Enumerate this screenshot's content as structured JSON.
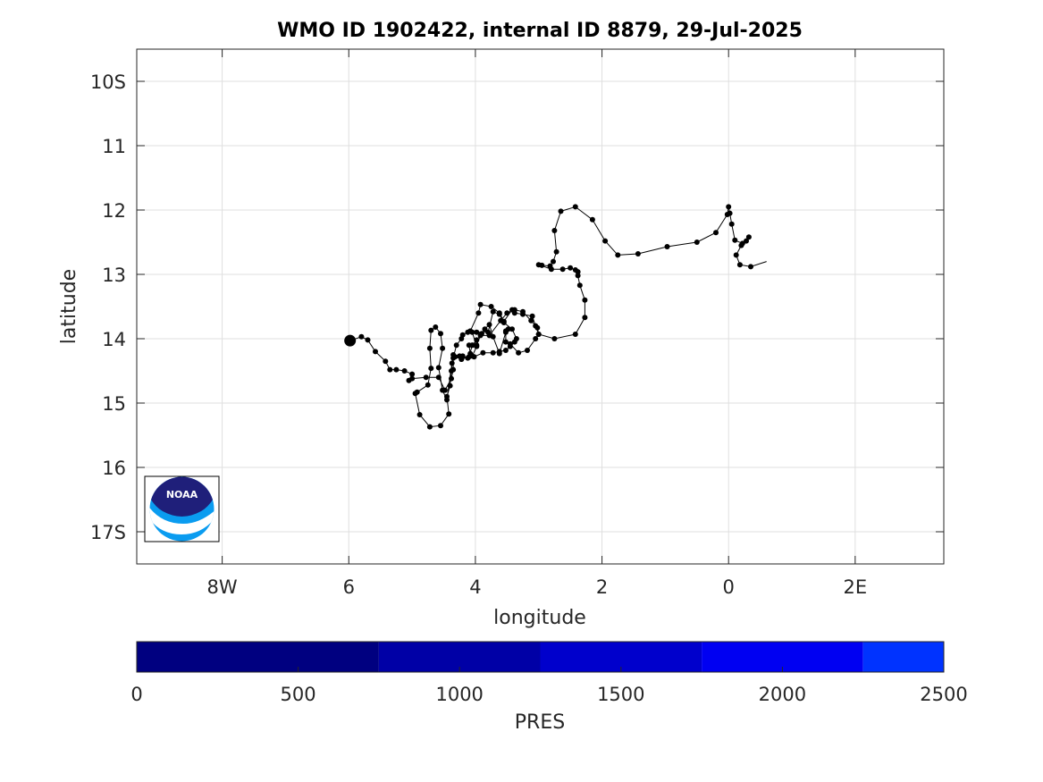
{
  "chart_data": {
    "type": "line",
    "title": "WMO ID 1902422, internal ID 8879, 29-Jul-2025",
    "xlabel": "longitude",
    "ylabel": "latitude",
    "xlim": [
      -9.35,
      3.4
    ],
    "ylim": [
      17.5,
      9.5
    ],
    "x_ticks": [
      {
        "value": -8,
        "label": "8W"
      },
      {
        "value": -6,
        "label": "6"
      },
      {
        "value": -4,
        "label": "4"
      },
      {
        "value": -2,
        "label": "2"
      },
      {
        "value": 0,
        "label": "0"
      },
      {
        "value": 2,
        "label": "2E"
      }
    ],
    "y_ticks": [
      {
        "value": 10,
        "label": "10S"
      },
      {
        "value": 11,
        "label": "11"
      },
      {
        "value": 12,
        "label": "12"
      },
      {
        "value": 13,
        "label": "13"
      },
      {
        "value": 14,
        "label": "14"
      },
      {
        "value": 15,
        "label": "15"
      },
      {
        "value": 16,
        "label": "16"
      },
      {
        "value": 17,
        "label": "17S"
      }
    ],
    "grid": true,
    "series": [
      {
        "points": [
          [
            0.6,
            12.8
          ],
          [
            0.35,
            12.88
          ],
          [
            0.18,
            12.85
          ],
          [
            0.12,
            12.7
          ],
          [
            0.2,
            12.55
          ],
          [
            0.32,
            12.42
          ],
          [
            0.28,
            12.48
          ],
          [
            0.22,
            12.52
          ],
          [
            0.1,
            12.47
          ],
          [
            0.05,
            12.22
          ],
          [
            0.02,
            12.05
          ],
          [
            0.0,
            11.95
          ],
          [
            -0.02,
            12.07
          ],
          [
            -0.2,
            12.35
          ],
          [
            -0.5,
            12.5
          ],
          [
            -0.97,
            12.57
          ],
          [
            -1.43,
            12.68
          ],
          [
            -1.75,
            12.7
          ],
          [
            -1.95,
            12.48
          ],
          [
            -2.15,
            12.15
          ],
          [
            -2.42,
            11.95
          ],
          [
            -2.65,
            12.02
          ],
          [
            -2.75,
            12.32
          ],
          [
            -2.72,
            12.65
          ],
          [
            -2.77,
            12.8
          ],
          [
            -2.82,
            12.87
          ],
          [
            -2.95,
            12.86
          ],
          [
            -3.0,
            12.85
          ],
          [
            -2.8,
            12.92
          ],
          [
            -2.62,
            12.92
          ],
          [
            -2.5,
            12.9
          ],
          [
            -2.42,
            12.93
          ],
          [
            -2.38,
            12.96
          ],
          [
            -2.38,
            13.02
          ],
          [
            -2.35,
            13.17
          ],
          [
            -2.27,
            13.4
          ],
          [
            -2.27,
            13.67
          ],
          [
            -2.42,
            13.93
          ],
          [
            -2.75,
            14.0
          ],
          [
            -3.0,
            13.93
          ],
          [
            -3.05,
            13.8
          ],
          [
            -3.1,
            13.65
          ],
          [
            -3.25,
            13.62
          ],
          [
            -3.38,
            13.6
          ],
          [
            -3.42,
            13.55
          ],
          [
            -3.55,
            13.73
          ],
          [
            -3.62,
            13.6
          ],
          [
            -3.75,
            13.5
          ],
          [
            -3.92,
            13.47
          ],
          [
            -3.95,
            13.6
          ],
          [
            -4.08,
            13.88
          ],
          [
            -4.05,
            13.9
          ],
          [
            -3.98,
            14.12
          ],
          [
            -4.05,
            14.27
          ],
          [
            -4.12,
            14.3
          ],
          [
            -4.2,
            14.27
          ],
          [
            -4.22,
            14.32
          ],
          [
            -4.25,
            14.27
          ],
          [
            -4.35,
            14.25
          ],
          [
            -4.38,
            14.5
          ],
          [
            -4.4,
            14.73
          ],
          [
            -4.45,
            14.9
          ],
          [
            -4.42,
            15.17
          ],
          [
            -4.55,
            15.35
          ],
          [
            -4.72,
            15.37
          ],
          [
            -4.88,
            15.18
          ],
          [
            -4.95,
            14.85
          ],
          [
            -4.92,
            14.83
          ],
          [
            -4.75,
            14.72
          ],
          [
            -4.7,
            14.46
          ],
          [
            -4.72,
            14.15
          ],
          [
            -4.7,
            13.87
          ],
          [
            -4.63,
            13.82
          ],
          [
            -4.55,
            13.92
          ],
          [
            -4.52,
            14.15
          ],
          [
            -4.58,
            14.45
          ],
          [
            -4.52,
            14.8
          ],
          [
            -4.45,
            14.95
          ],
          [
            -4.37,
            14.38
          ],
          [
            -4.32,
            14.28
          ],
          [
            -4.22,
            14.32
          ],
          [
            -4.1,
            14.28
          ],
          [
            -4.05,
            14.1
          ],
          [
            -3.98,
            14.02
          ],
          [
            -3.9,
            13.92
          ],
          [
            -3.85,
            13.85
          ],
          [
            -3.78,
            13.78
          ],
          [
            -3.72,
            13.97
          ],
          [
            -3.62,
            14.23
          ],
          [
            -3.52,
            13.9
          ],
          [
            -3.48,
            13.85
          ],
          [
            -3.52,
            13.88
          ],
          [
            -3.52,
            14.05
          ],
          [
            -3.45,
            14.08
          ],
          [
            -3.32,
            14.22
          ],
          [
            -3.18,
            14.18
          ],
          [
            -3.05,
            14.0
          ],
          [
            -3.0,
            13.93
          ],
          [
            -3.02,
            13.83
          ],
          [
            -3.12,
            13.72
          ],
          [
            -3.25,
            13.58
          ],
          [
            -3.38,
            13.55
          ],
          [
            -3.5,
            13.6
          ],
          [
            -3.6,
            13.72
          ],
          [
            -3.78,
            13.95
          ],
          [
            -3.92,
            13.95
          ],
          [
            -3.98,
            14.1
          ],
          [
            -4.05,
            14.1
          ],
          [
            -4.1,
            14.1
          ],
          [
            -4.08,
            14.23
          ],
          [
            -4.02,
            14.28
          ],
          [
            -3.88,
            14.22
          ],
          [
            -3.72,
            14.22
          ],
          [
            -3.62,
            14.2
          ],
          [
            -3.52,
            14.18
          ],
          [
            -3.45,
            14.12
          ],
          [
            -3.38,
            14.05
          ],
          [
            -3.35,
            14.0
          ],
          [
            -3.42,
            13.85
          ],
          [
            -3.55,
            13.75
          ],
          [
            -3.62,
            13.62
          ],
          [
            -3.72,
            13.58
          ],
          [
            -3.8,
            13.9
          ],
          [
            -3.98,
            13.9
          ],
          [
            -4.12,
            13.9
          ],
          [
            -4.2,
            13.94
          ],
          [
            -4.22,
            14.0
          ],
          [
            -4.3,
            14.1
          ],
          [
            -4.35,
            14.3
          ],
          [
            -4.35,
            14.48
          ],
          [
            -4.38,
            14.62
          ],
          [
            -4.48,
            14.8
          ],
          [
            -4.58,
            14.6
          ],
          [
            -4.78,
            14.6
          ],
          [
            -5.0,
            14.62
          ],
          [
            -5.05,
            14.65
          ],
          [
            -5.0,
            14.55
          ],
          [
            -5.12,
            14.5
          ],
          [
            -5.25,
            14.48
          ],
          [
            -5.35,
            14.48
          ],
          [
            -5.42,
            14.35
          ],
          [
            -5.58,
            14.2
          ],
          [
            -5.7,
            14.02
          ],
          [
            -5.8,
            13.97
          ],
          [
            -5.98,
            14.03
          ]
        ]
      }
    ],
    "start_marker": {
      "x": -5.98,
      "y": 14.03
    },
    "colorbar": {
      "label": "PRES",
      "range": [
        0,
        2500
      ],
      "ticks": [
        0,
        500,
        1000,
        1500,
        2000,
        2500
      ],
      "bands": [
        {
          "from": 0,
          "to": 750,
          "color": "#000080"
        },
        {
          "from": 750,
          "to": 1250,
          "color": "#0000a6"
        },
        {
          "from": 1250,
          "to": 1750,
          "color": "#0000cc"
        },
        {
          "from": 1750,
          "to": 2250,
          "color": "#0000f2"
        },
        {
          "from": 2250,
          "to": 2500,
          "color": "#0033ff"
        }
      ]
    },
    "logo": {
      "text": "NOAA"
    },
    "colors": {
      "track": "#000000",
      "grid": "#dfdfdf",
      "axis": "#262626",
      "logo_dark": "#1f1f7a",
      "logo_light": "#0a9cf0"
    }
  }
}
